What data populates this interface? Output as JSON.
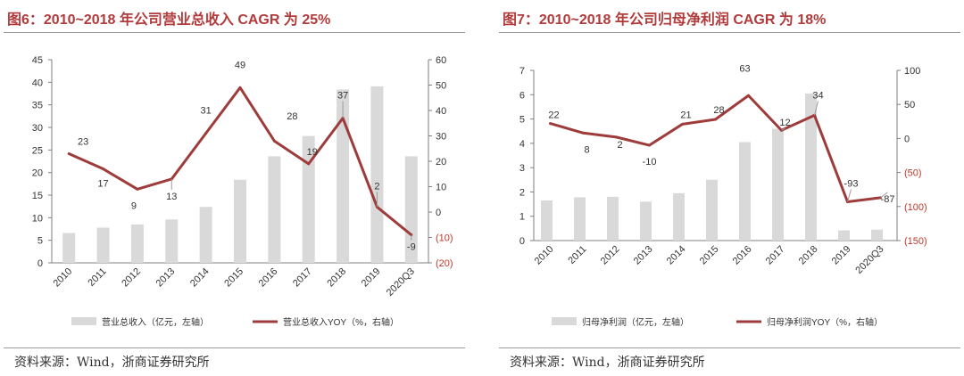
{
  "panels": [
    {
      "title": "图6：2010~2018 年公司营业总收入 CAGR 为 25%",
      "source": "资料来源：Wind，浙商证券研究所",
      "chart_data": {
        "type": "bar+line",
        "categories": [
          "2010",
          "2011",
          "2012",
          "2013",
          "2014",
          "2015",
          "2016",
          "2017",
          "2018",
          "2019",
          "2020Q3"
        ],
        "bars": {
          "name": "营业总收入（亿元，左轴）",
          "values": [
            6.6,
            7.8,
            8.5,
            9.6,
            12.4,
            18.4,
            23.6,
            28.1,
            38.4,
            39.1,
            23.6
          ]
        },
        "line": {
          "name": "营业总收入YOY（%，右轴）",
          "values": [
            23,
            17,
            9,
            13,
            31,
            49,
            28,
            19,
            37,
            2,
            -9
          ]
        },
        "data_labels": [
          "23",
          "17",
          "9",
          "13",
          "31",
          "49",
          "28",
          "19",
          "37",
          "2",
          "-9"
        ],
        "left_axis": {
          "range": [
            0,
            45
          ],
          "ticks": [
            0,
            5,
            10,
            15,
            20,
            25,
            30,
            35,
            40,
            45
          ],
          "tick_labels": [
            "0",
            "5",
            "10",
            "15",
            "20",
            "25",
            "30",
            "35",
            "40",
            "45"
          ]
        },
        "right_axis": {
          "range": [
            -20,
            60
          ],
          "ticks": [
            -20,
            -10,
            0,
            10,
            20,
            30,
            40,
            50,
            60
          ],
          "tick_labels": [
            "(20)",
            "(10)",
            "0",
            "10",
            "20",
            "30",
            "40",
            "50",
            "60"
          ]
        }
      }
    },
    {
      "title": "图7：2010~2018 年公司归母净利润 CAGR 为 18%",
      "source": "资料来源：Wind，浙商证券研究所",
      "chart_data": {
        "type": "bar+line",
        "categories": [
          "2010",
          "2011",
          "2012",
          "2013",
          "2014",
          "2015",
          "2016",
          "2017",
          "2018",
          "2019",
          "2020Q3"
        ],
        "bars": {
          "name": "归母净利润（亿元，左轴）",
          "values": [
            1.65,
            1.78,
            1.8,
            1.6,
            1.95,
            2.5,
            4.05,
            4.6,
            6.05,
            0.42,
            0.45
          ]
        },
        "line": {
          "name": "归母净利润YOY（%，右轴）",
          "values": [
            22,
            8,
            2,
            -10,
            21,
            28,
            63,
            12,
            34,
            -93,
            -87
          ]
        },
        "data_labels": [
          "22",
          "8",
          "2",
          "-10",
          "21",
          "28",
          "63",
          "12",
          "34",
          "-93",
          "-87"
        ],
        "left_axis": {
          "range": [
            0,
            7
          ],
          "ticks": [
            0,
            1,
            2,
            3,
            4,
            5,
            6,
            7
          ],
          "tick_labels": [
            "0",
            "1",
            "2",
            "3",
            "4",
            "5",
            "6",
            "7"
          ]
        },
        "right_axis": {
          "range": [
            -150,
            100
          ],
          "ticks": [
            -150,
            -100,
            -50,
            0,
            50,
            100
          ],
          "tick_labels": [
            "(150)",
            "(100)",
            "(50)",
            "0",
            "50",
            "100"
          ]
        }
      }
    }
  ],
  "colors": {
    "bar": "#d9d9d9",
    "line": "#9e3b3b",
    "axis": "#7f7f7f",
    "text": "#333333",
    "negative": "#c0392b",
    "title": "#b23a3a"
  }
}
